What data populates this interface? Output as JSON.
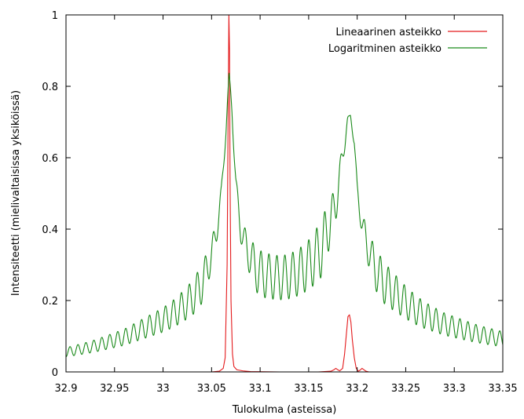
{
  "chart_data": {
    "type": "line",
    "xlabel": "Tulokulma (asteissa)",
    "ylabel": "Intensiteetti (mielivaltaisissa yksiköissä)",
    "xlim": [
      32.9,
      33.35
    ],
    "ylim": [
      0,
      1
    ],
    "xticks": [
      "32.9",
      "32.95",
      "33",
      "33.05",
      "33.1",
      "33.15",
      "33.2",
      "33.25",
      "33.3",
      "33.35"
    ],
    "yticks": [
      "0",
      "0.2",
      "0.4",
      "0.6",
      "0.8",
      "1"
    ],
    "grid": false,
    "legend_position": "top-right",
    "series": [
      {
        "name": "Lineaarinen asteikko",
        "color": "#e41a1c",
        "x": [
          32.9,
          33.0,
          33.05,
          33.058,
          33.062,
          33.064,
          33.066,
          33.067,
          33.0678,
          33.0685,
          33.069,
          33.07,
          33.0715,
          33.073,
          33.076,
          33.082,
          33.09,
          33.12,
          33.16,
          33.173,
          33.176,
          33.178,
          33.18,
          33.182,
          33.185,
          33.187,
          33.189,
          33.1905,
          33.192,
          33.1935,
          33.195,
          33.197,
          33.199,
          33.201,
          33.203,
          33.205,
          33.207,
          33.209,
          33.212,
          33.22,
          33.26,
          33.35
        ],
        "y": [
          0.0,
          0.0,
          0.0,
          0.002,
          0.01,
          0.04,
          0.3,
          0.7,
          1.0,
          0.9,
          0.55,
          0.2,
          0.05,
          0.015,
          0.006,
          0.003,
          0.001,
          0.0,
          0.0,
          0.002,
          0.006,
          0.01,
          0.006,
          0.003,
          0.01,
          0.05,
          0.11,
          0.155,
          0.16,
          0.14,
          0.09,
          0.04,
          0.01,
          0.002,
          0.005,
          0.01,
          0.006,
          0.002,
          0.0,
          0.0,
          0.0,
          0.0
        ]
      },
      {
        "name": "Logaritminen asteikko",
        "color": "#1a8a1a",
        "x": [
          32.9,
          32.91,
          32.92,
          32.93,
          32.94,
          32.95,
          32.96,
          32.97,
          32.98,
          32.99,
          33.0,
          33.01,
          33.02,
          33.03,
          33.04,
          33.05,
          33.055,
          33.06,
          33.065,
          33.068,
          33.071,
          33.075,
          33.08,
          33.085,
          33.09,
          33.1,
          33.11,
          33.12,
          33.13,
          33.14,
          33.15,
          33.16,
          33.17,
          33.178,
          33.185,
          33.19,
          33.193,
          33.197,
          33.2,
          33.205,
          33.21,
          33.22,
          33.23,
          33.24,
          33.25,
          33.26,
          33.27,
          33.28,
          33.29,
          33.3,
          33.31,
          33.32,
          33.33,
          33.34,
          33.35
        ],
        "y": [
          0.068,
          0.075,
          0.082,
          0.09,
          0.1,
          0.11,
          0.12,
          0.135,
          0.15,
          0.165,
          0.18,
          0.2,
          0.225,
          0.255,
          0.3,
          0.37,
          0.43,
          0.52,
          0.7,
          0.84,
          0.75,
          0.55,
          0.43,
          0.4,
          0.37,
          0.34,
          0.33,
          0.325,
          0.33,
          0.345,
          0.37,
          0.41,
          0.47,
          0.52,
          0.64,
          0.715,
          0.72,
          0.66,
          0.53,
          0.45,
          0.4,
          0.34,
          0.3,
          0.27,
          0.24,
          0.215,
          0.195,
          0.18,
          0.165,
          0.155,
          0.145,
          0.135,
          0.127,
          0.12,
          0.113
        ]
      }
    ]
  }
}
